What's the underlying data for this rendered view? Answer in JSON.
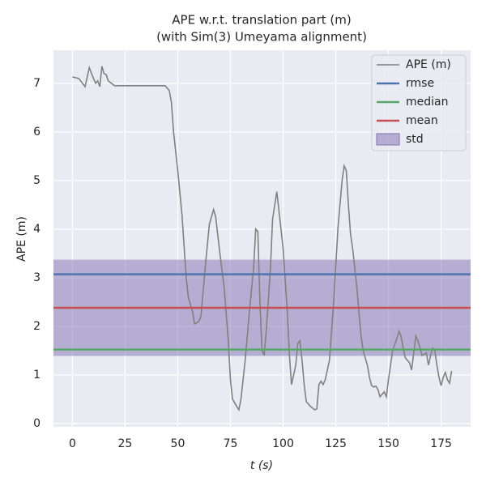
{
  "chart_data": {
    "type": "line",
    "title": [
      "APE w.r.t. translation part (m)",
      "(with Sim(3) Umeyama alignment)"
    ],
    "x_label": "t (s)",
    "y_label": "APE (m)",
    "x": [
      0,
      3,
      6,
      8,
      10,
      11,
      12,
      13,
      14,
      15,
      16,
      17,
      20,
      25,
      30,
      35,
      40,
      44,
      46,
      47,
      48,
      50,
      52,
      54,
      55,
      57,
      58,
      60,
      61,
      63,
      65,
      67,
      68,
      70,
      72,
      74,
      75,
      76,
      78,
      79,
      80,
      82,
      84,
      86,
      87,
      88,
      89,
      90,
      91,
      92,
      94,
      95,
      97,
      99,
      100,
      102,
      103,
      104,
      106,
      107,
      108,
      109,
      110,
      111,
      113,
      115,
      116,
      117,
      118,
      119,
      120,
      122,
      124,
      126,
      128,
      129,
      130,
      131,
      132,
      133,
      135,
      137,
      138,
      140,
      141,
      142,
      143,
      144,
      145,
      146,
      147,
      148,
      149,
      150,
      151,
      152,
      154,
      155,
      156,
      157,
      158,
      160,
      161,
      162,
      163,
      164,
      165,
      166,
      168,
      169,
      170,
      171,
      172,
      173,
      174,
      175,
      176,
      177,
      178,
      179,
      180
    ],
    "series": [
      {
        "name": "APE (m)",
        "color": "#808080",
        "values": [
          7.13,
          7.1,
          6.93,
          7.32,
          7.1,
          7.0,
          7.05,
          6.93,
          7.35,
          7.2,
          7.18,
          7.05,
          6.95,
          6.95,
          6.95,
          6.95,
          6.95,
          6.95,
          6.85,
          6.6,
          6.0,
          5.2,
          4.3,
          3.0,
          2.6,
          2.3,
          2.05,
          2.1,
          2.2,
          3.2,
          4.1,
          4.4,
          4.25,
          3.5,
          2.8,
          1.7,
          0.9,
          0.5,
          0.35,
          0.28,
          0.5,
          1.3,
          2.3,
          3.2,
          4.0,
          3.95,
          2.5,
          1.5,
          1.4,
          1.9,
          3.2,
          4.2,
          4.77,
          4.0,
          3.6,
          2.3,
          1.4,
          0.8,
          1.2,
          1.65,
          1.7,
          1.3,
          0.8,
          0.45,
          0.35,
          0.28,
          0.3,
          0.8,
          0.87,
          0.8,
          0.9,
          1.3,
          2.5,
          4.0,
          5.0,
          5.3,
          5.2,
          4.5,
          3.9,
          3.6,
          2.8,
          1.8,
          1.5,
          1.2,
          0.95,
          0.78,
          0.75,
          0.77,
          0.7,
          0.55,
          0.6,
          0.65,
          0.55,
          0.9,
          1.2,
          1.5,
          1.75,
          1.9,
          1.8,
          1.55,
          1.35,
          1.25,
          1.1,
          1.45,
          1.8,
          1.7,
          1.55,
          1.4,
          1.45,
          1.2,
          1.4,
          1.55,
          1.5,
          1.2,
          0.95,
          0.78,
          0.95,
          1.05,
          0.9,
          0.83,
          1.08
        ]
      }
    ],
    "stats": [
      {
        "name": "rmse",
        "color": "#4c72b0",
        "value": 3.07
      },
      {
        "name": "median",
        "color": "#55a868",
        "value": 1.52
      },
      {
        "name": "mean",
        "color": "#c44e52",
        "value": 2.38
      }
    ],
    "std": {
      "name": "std",
      "color": "#8172b2",
      "value": 0.99
    },
    "xlim": [
      -9,
      189
    ],
    "ylim": [
      -0.07,
      7.68
    ],
    "xticks": [
      0,
      25,
      50,
      75,
      100,
      125,
      150,
      175
    ],
    "yticks": [
      0,
      1,
      2,
      3,
      4,
      5,
      6,
      7
    ],
    "grid": true,
    "legend": "upper right"
  }
}
